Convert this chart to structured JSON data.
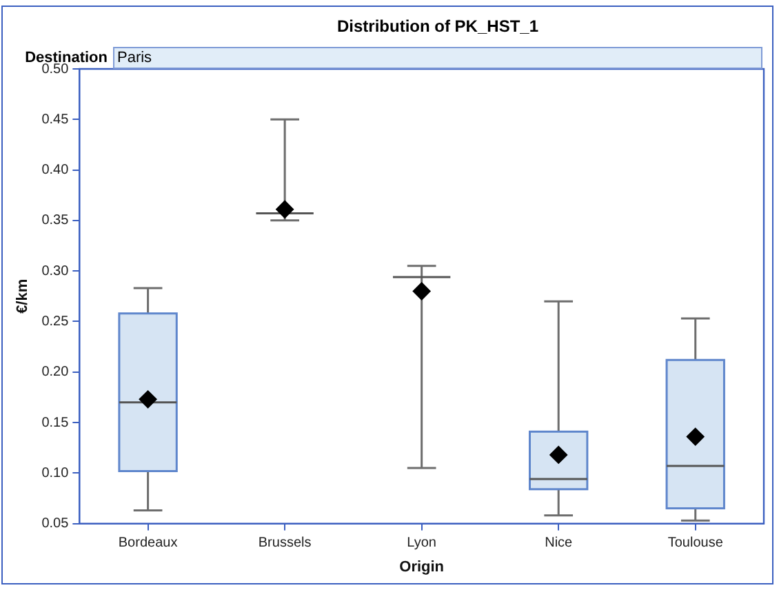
{
  "chart_data": {
    "type": "box",
    "title": "Distribution of PK_HST_1",
    "xlabel": "Origin",
    "ylabel": "€/km",
    "annotations": [
      "Destination",
      "Paris"
    ],
    "categories": [
      "Bordeaux",
      "Brussels",
      "Lyon",
      "Nice",
      "Toulouse"
    ],
    "marker": "diamond",
    "grid": false,
    "boxes": [
      {
        "low": 0.063,
        "q1": 0.102,
        "median": 0.17,
        "q3": 0.258,
        "high": 0.283,
        "mean": 0.173
      },
      {
        "low": 0.35,
        "q1": 0.357,
        "median": 0.357,
        "q3": 0.357,
        "high": 0.45,
        "mean": 0.361
      },
      {
        "low": 0.105,
        "q1": 0.294,
        "median": 0.294,
        "q3": 0.294,
        "high": 0.305,
        "mean": 0.28
      },
      {
        "low": 0.058,
        "q1": 0.084,
        "median": 0.094,
        "q3": 0.141,
        "high": 0.27,
        "mean": 0.118
      },
      {
        "low": 0.053,
        "q1": 0.065,
        "median": 0.107,
        "q3": 0.212,
        "high": 0.253,
        "mean": 0.136
      }
    ],
    "ylim": [
      0.05,
      0.5
    ],
    "yticks": [
      0.05,
      {
        "value": 0.1,
        "label": "0.10"
      },
      0.15,
      {
        "value": 0.2,
        "label": "0.20"
      },
      0.25,
      {
        "value": 0.3,
        "label": "0.30"
      },
      0.35,
      {
        "value": 0.4,
        "label": "0.40"
      },
      0.45,
      {
        "value": 0.5,
        "label": "0.50"
      }
    ]
  }
}
